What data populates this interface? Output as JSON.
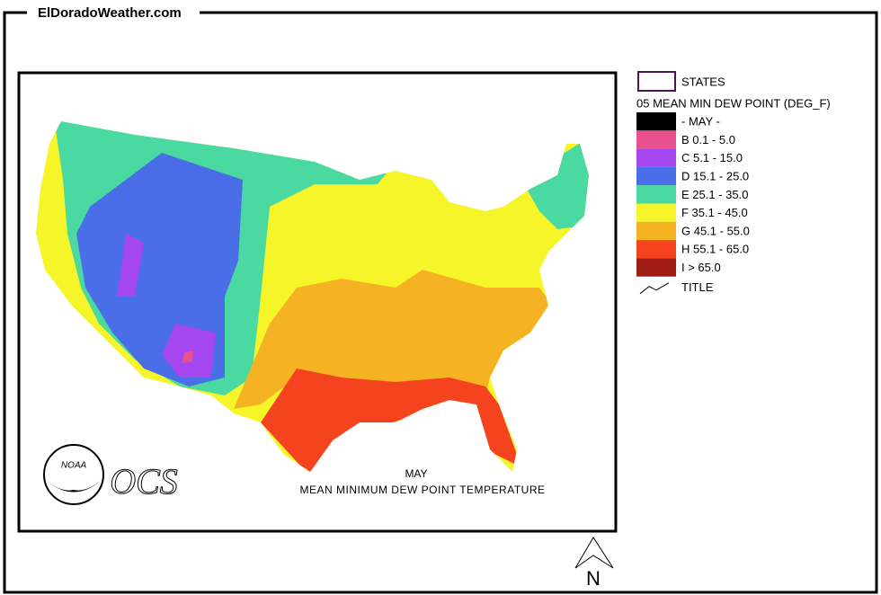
{
  "header": {
    "site": "ElDoradoWeather.com"
  },
  "legend": {
    "states": "STATES",
    "title": "05 MEAN MIN DEW POINT (DEG_F)",
    "items": [
      {
        "label": "- MAY -",
        "color": "#000000"
      },
      {
        "label": "B 0.1 - 5.0",
        "color": "#e8508f"
      },
      {
        "label": "C 5.1 - 15.0",
        "color": "#a447ef"
      },
      {
        "label": "D 15.1 - 25.0",
        "color": "#4a6ee8"
      },
      {
        "label": "E 25.1 - 35.0",
        "color": "#4ad9a0"
      },
      {
        "label": "F 35.1 - 45.0",
        "color": "#f5f52a"
      },
      {
        "label": "G 45.1 - 55.0",
        "color": "#f5b323"
      },
      {
        "label": "H 55.1 - 65.0",
        "color": "#f5421f"
      },
      {
        "label": "I > 65.0",
        "color": "#a01e16"
      }
    ],
    "title_line": "TITLE"
  },
  "map": {
    "logo": "NOAA",
    "agency": "OCS",
    "month": "MAY",
    "caption": "MEAN MINIMUM DEW POINT TEMPERATURE"
  },
  "compass": "N"
}
